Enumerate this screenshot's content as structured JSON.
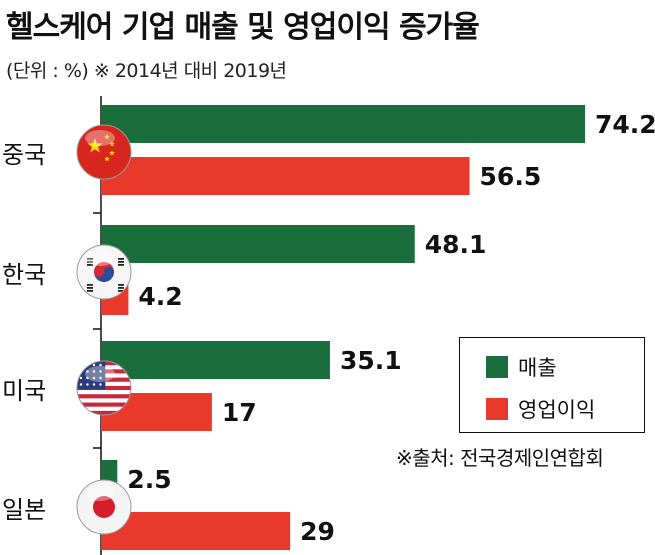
{
  "title": "헬스케어 기업 매출 및 영업이익 증가율",
  "subtitle": "(단위 : %) ※ 2014년 대비 2019년",
  "source": "※출처: 전국경제인연합회",
  "colors": {
    "revenue": "#1a6e3c",
    "profit": "#e8392c"
  },
  "legend": [
    {
      "label": "매출",
      "color": "#1a6e3c"
    },
    {
      "label": "영업이익",
      "color": "#e8392c"
    }
  ],
  "chart_data": {
    "type": "bar",
    "orientation": "horizontal",
    "categories": [
      "중국",
      "한국",
      "미국",
      "일본"
    ],
    "category_icons": [
      "china-flag-icon",
      "korea-flag-icon",
      "usa-flag-icon",
      "japan-flag-icon"
    ],
    "series": [
      {
        "name": "매출",
        "values": [
          74.2,
          48.1,
          35.1,
          2.5
        ],
        "value_labels": [
          "74.2",
          "48.1",
          "35.1",
          "2.5"
        ]
      },
      {
        "name": "영업이익",
        "values": [
          56.5,
          4.2,
          17,
          29
        ],
        "value_labels": [
          "56.5",
          "4.2",
          "17",
          "29"
        ]
      }
    ],
    "title": "헬스케어 기업 매출 및 영업이익 증가율",
    "xlabel": "",
    "ylabel": "",
    "xlim": [
      0,
      74.2
    ],
    "grid": false,
    "legend_position": "bottom-right"
  }
}
